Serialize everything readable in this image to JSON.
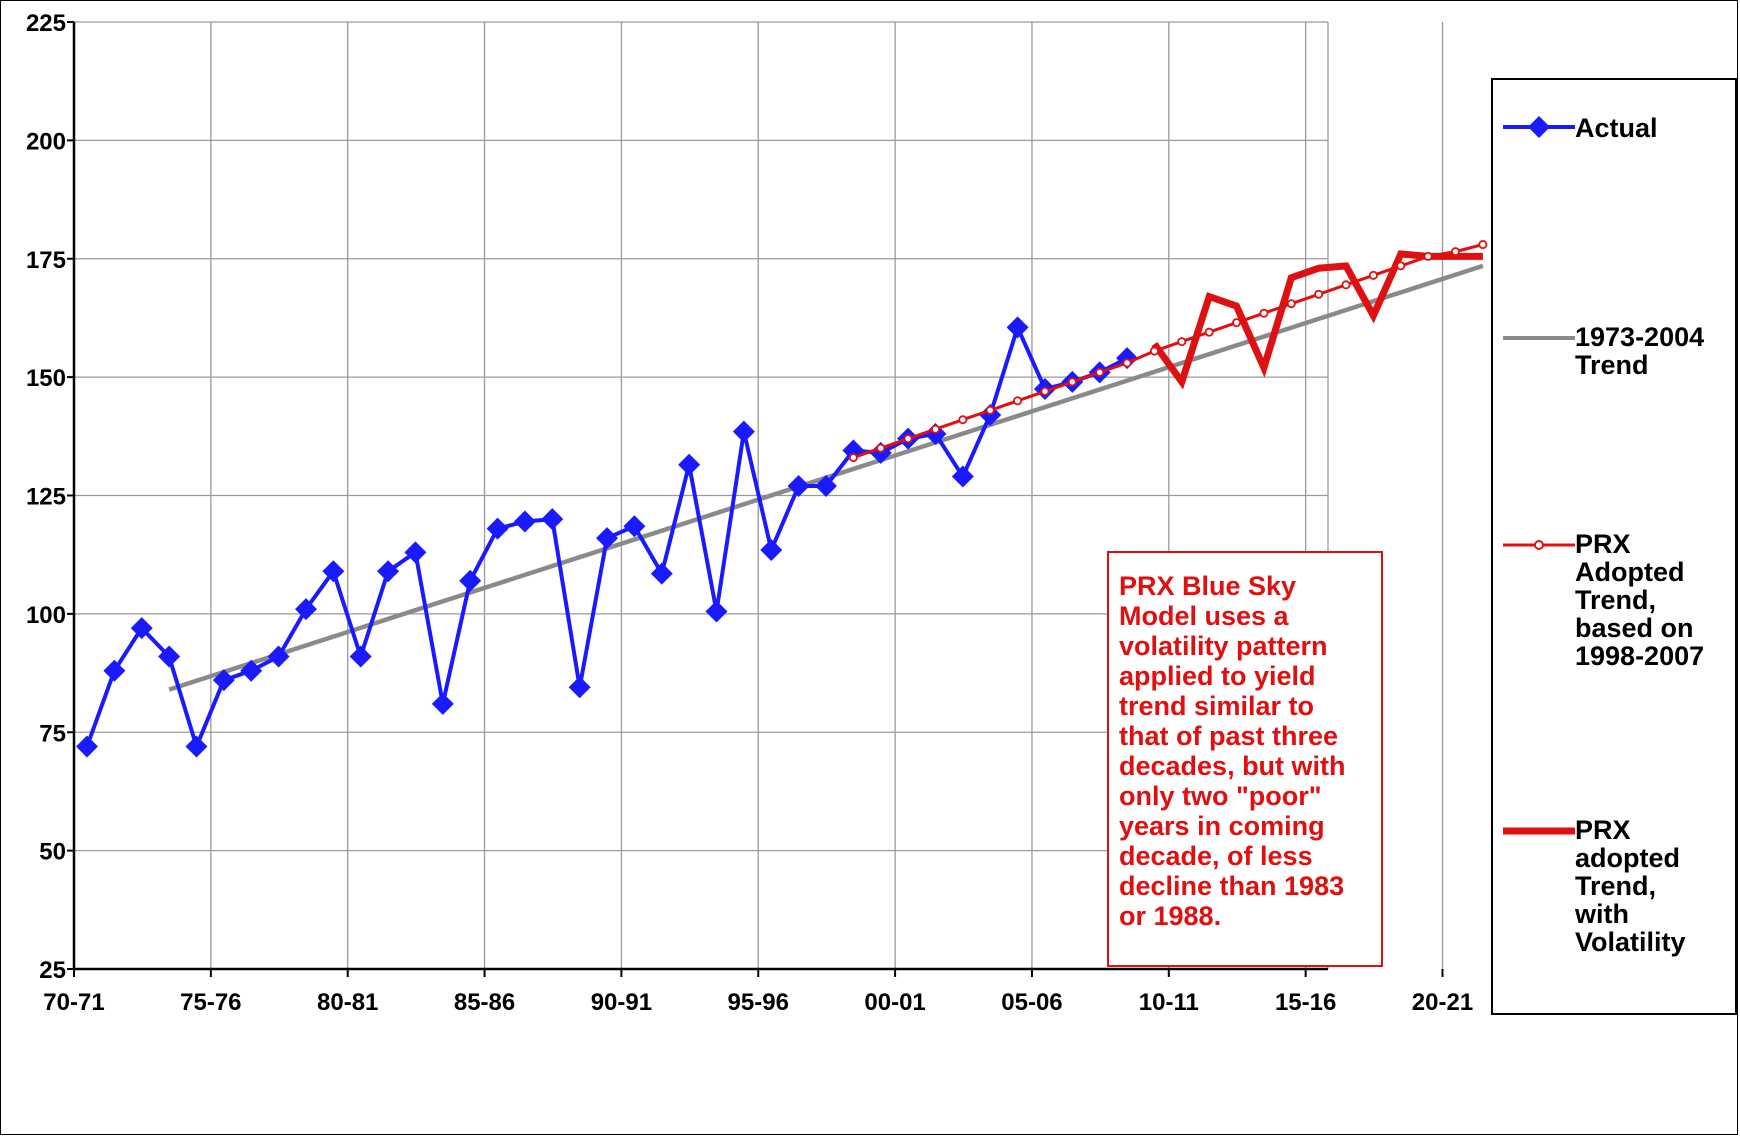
{
  "chart_data": {
    "type": "line",
    "title": "",
    "xlabel": "",
    "ylabel": "",
    "ylim": [
      25,
      225
    ],
    "y_ticks": [
      25,
      50,
      75,
      100,
      125,
      150,
      175,
      200,
      225
    ],
    "x_tick_labels": [
      "70-71",
      "75-76",
      "80-81",
      "85-86",
      "90-91",
      "95-96",
      "00-01",
      "05-06",
      "10-11",
      "15-16",
      "20-21"
    ],
    "x_start_year": 1970,
    "x_end_year": 2021,
    "grid": true,
    "legend_position": "right",
    "annotation": "PRX Blue Sky\nModel uses a\nvolatility pattern\napplied to yield\ntrend similar to\nthat of past three\ndecades, but with\nonly two \"poor\"\nyears in coming\ndecade, of less\ndecline than 1983\nor 1988.",
    "series": [
      {
        "name": "Actual",
        "color": "#1a1aff",
        "marker": "diamond",
        "x": [
          1970,
          1971,
          1972,
          1973,
          1974,
          1975,
          1976,
          1977,
          1978,
          1979,
          1980,
          1981,
          1982,
          1983,
          1984,
          1985,
          1986,
          1987,
          1988,
          1989,
          1990,
          1991,
          1992,
          1993,
          1994,
          1995,
          1996,
          1997,
          1998,
          1999,
          2000,
          2001,
          2002,
          2003,
          2004,
          2005,
          2006,
          2007,
          2008
        ],
        "values": [
          72,
          88,
          97,
          91,
          72,
          86,
          88,
          91,
          101,
          109,
          91,
          109,
          113,
          81,
          107,
          118,
          119.5,
          120,
          84.5,
          116,
          118.5,
          108.5,
          131.5,
          100.5,
          138.5,
          113.5,
          127,
          127,
          134.5,
          134,
          137,
          138,
          129,
          142,
          160.5,
          147.5,
          149,
          151,
          154
        ]
      },
      {
        "name": "1973-2004\nTrend",
        "color": "#8a8a8a",
        "x": [
          1973,
          2021
        ],
        "values": [
          84,
          173.5
        ]
      },
      {
        "name": "PRX\nAdopted\nTrend,\nbased on\n1998-2007",
        "color": "#e01010",
        "marker": "circle",
        "x": [
          1998,
          1999,
          2000,
          2001,
          2002,
          2003,
          2004,
          2005,
          2006,
          2007,
          2008,
          2009,
          2010,
          2011,
          2012,
          2013,
          2014,
          2015,
          2016,
          2017,
          2018,
          2019,
          2020,
          2021
        ],
        "values": [
          133,
          135,
          137,
          139,
          141,
          143,
          145,
          147,
          149,
          151,
          153,
          155.5,
          157.5,
          159.5,
          161.5,
          163.5,
          165.5,
          167.5,
          169.5,
          171.5,
          173.5,
          175.5,
          176.5,
          178
        ]
      },
      {
        "name": "PRX\nadopted\nTrend,\nwith\nVolatility",
        "color": "#dd1111",
        "x": [
          2009,
          2010,
          2011,
          2012,
          2013,
          2014,
          2015,
          2016,
          2017,
          2018,
          2019,
          2020,
          2021
        ],
        "values": [
          157,
          149,
          167,
          165,
          152,
          171,
          173,
          173.5,
          163,
          176,
          175.5,
          175.5,
          175.5
        ]
      }
    ]
  }
}
